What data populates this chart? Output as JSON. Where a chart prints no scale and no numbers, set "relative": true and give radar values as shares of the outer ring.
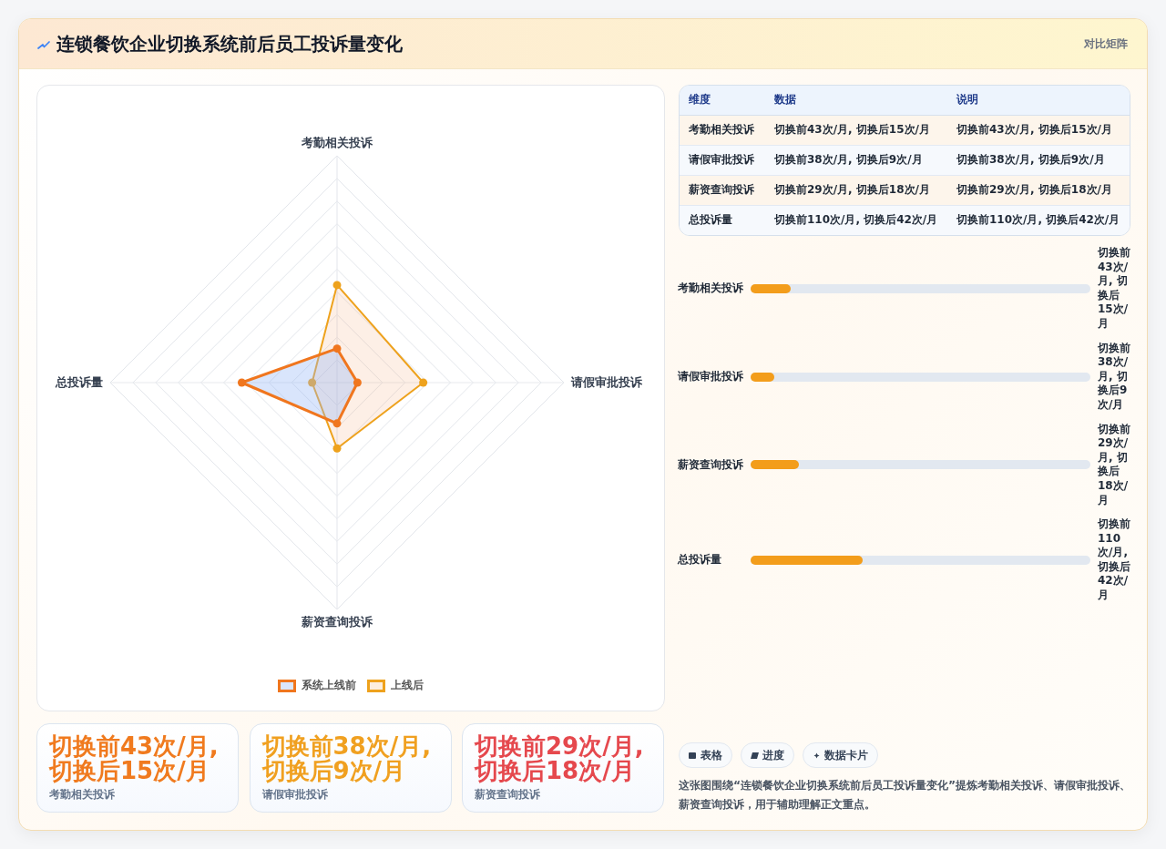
{
  "chart_data": [
    {
      "type": "other",
      "title": "连锁餐饮企业切换系统前后员工投诉量变化",
      "annotations": [
        "对比矩阵"
      ]
    },
    {
      "type": "radar",
      "categories": [
        "考勤相关投诉",
        "请假审批投诉",
        "薪资查询投诉",
        "总投诉量"
      ],
      "relative": true,
      "grid": true,
      "legend": "bottom",
      "marker": "circle",
      "series": [
        {
          "name": "系统上线前",
          "color": "#f0761e",
          "values": [
            0.15,
            0.09,
            0.18,
            0.42
          ]
        },
        {
          "name": "上线后",
          "color": "#eea21d",
          "values": [
            0.43,
            0.38,
            0.29,
            0.11
          ]
        }
      ]
    },
    {
      "type": "other",
      "ylabel": "维度",
      "categories": [
        "数据",
        "说明"
      ],
      "y_categories": [
        "考勤相关投诉",
        "请假审批投诉",
        "薪资查询投诉",
        "总投诉量"
      ],
      "cell_labels": [
        [
          "切换前43次/月, 切换后15次/月",
          "切换前43次/月, 切换后15次/月"
        ],
        [
          "切换前38次/月, 切换后9次/月",
          "切换前38次/月, 切换后9次/月"
        ],
        [
          "切换前29次/月, 切换后18次/月",
          "切换前29次/月, 切换后18次/月"
        ],
        [
          "切换前110次/月, 切换后42次/月",
          "切换前110次/月, 切换后42次/月"
        ]
      ]
    },
    {
      "type": "bar",
      "orientation": "horizontal",
      "categories": [
        "考勤相关投诉",
        "请假审批投诉",
        "薪资查询投诉",
        "总投诉量"
      ],
      "values": [
        15,
        9,
        18,
        42
      ],
      "color": "#f39d1b",
      "value_labels": [
        "切换前43次/月, 切换后15次/月",
        "切换前38次/月, 切换后9次/月",
        "切换前29次/月, 切换后18次/月",
        "切换前110次/月, 切换后42次/月"
      ]
    },
    {
      "type": "other",
      "categories": [
        "考勤相关投诉",
        "请假审批投诉",
        "薪资查询投诉"
      ],
      "annotations": [
        "切换前43次/月, 切换后15次/月",
        "切换前38次/月, 切换后9次/月",
        "切换前29次/月, 切换后18次/月"
      ]
    },
    {
      "type": "other",
      "categories": [
        "表格",
        "进度",
        "数据卡片"
      ],
      "annotations": [
        "这张图围绕“连锁餐饮企业切换系统前后员工投诉量变化”提炼考勤相关投诉、请假审批投诉、薪资查询投诉，用于辅助理解正文重点。"
      ]
    }
  ]
}
